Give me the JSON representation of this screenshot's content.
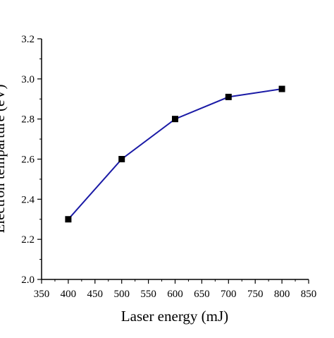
{
  "chart_data": {
    "type": "line",
    "xlabel": "Laser energy (mJ)",
    "ylabel": "Electron temparture (eV)",
    "xlim": [
      350,
      850
    ],
    "ylim": [
      2.0,
      3.2
    ],
    "x_ticks": [
      "350",
      "400",
      "450",
      "500",
      "550",
      "600",
      "650",
      "700",
      "750",
      "800",
      "850"
    ],
    "y_ticks": [
      "2.0",
      "2.2",
      "2.4",
      "2.6",
      "2.8",
      "3.0",
      "3.2"
    ],
    "grid": false,
    "series": [
      {
        "x": [
          400,
          500,
          600,
          700,
          800
        ],
        "values": [
          2.3,
          2.6,
          2.8,
          2.91,
          2.95
        ],
        "line_color": "#1a1aa6",
        "marker": "square",
        "marker_color": "#000000"
      }
    ]
  }
}
